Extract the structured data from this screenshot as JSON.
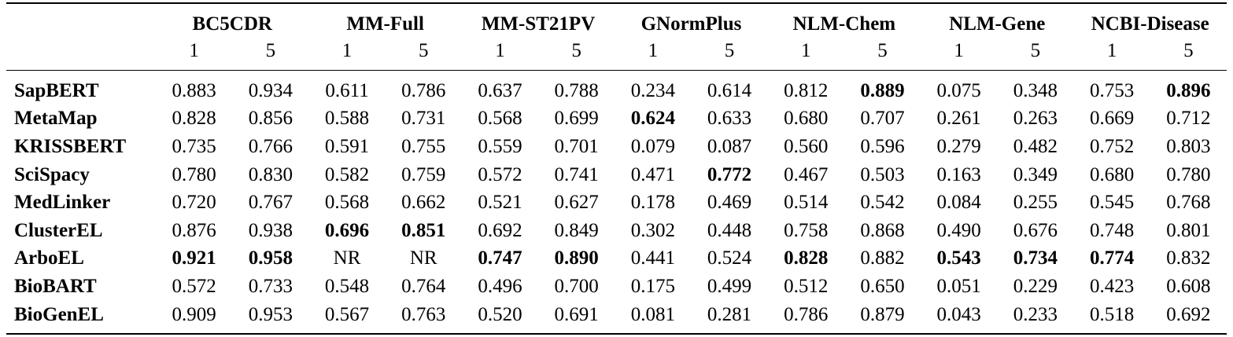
{
  "table": {
    "datasets": [
      "BC5CDR",
      "MM-Full",
      "MM-ST21PV",
      "GNormPlus",
      "NLM-Chem",
      "NLM-Gene",
      "NCBI-Disease"
    ],
    "k_labels": [
      "1",
      "5"
    ],
    "rows": [
      {
        "model": "SapBERT",
        "values": [
          "0.883",
          "0.934",
          "0.611",
          "0.786",
          "0.637",
          "0.788",
          "0.234",
          "0.614",
          "0.812",
          "0.889",
          "0.075",
          "0.348",
          "0.753",
          "0.896"
        ],
        "bold": [
          9,
          13
        ]
      },
      {
        "model": "MetaMap",
        "values": [
          "0.828",
          "0.856",
          "0.588",
          "0.731",
          "0.568",
          "0.699",
          "0.624",
          "0.633",
          "0.680",
          "0.707",
          "0.261",
          "0.263",
          "0.669",
          "0.712"
        ],
        "bold": [
          6
        ]
      },
      {
        "model": "KRISSBERT",
        "values": [
          "0.735",
          "0.766",
          "0.591",
          "0.755",
          "0.559",
          "0.701",
          "0.079",
          "0.087",
          "0.560",
          "0.596",
          "0.279",
          "0.482",
          "0.752",
          "0.803"
        ],
        "bold": []
      },
      {
        "model": "SciSpacy",
        "values": [
          "0.780",
          "0.830",
          "0.582",
          "0.759",
          "0.572",
          "0.741",
          "0.471",
          "0.772",
          "0.467",
          "0.503",
          "0.163",
          "0.349",
          "0.680",
          "0.780"
        ],
        "bold": [
          7
        ]
      },
      {
        "model": "MedLinker",
        "values": [
          "0.720",
          "0.767",
          "0.568",
          "0.662",
          "0.521",
          "0.627",
          "0.178",
          "0.469",
          "0.514",
          "0.542",
          "0.084",
          "0.255",
          "0.545",
          "0.768"
        ],
        "bold": []
      },
      {
        "model": "ClusterEL",
        "values": [
          "0.876",
          "0.938",
          "0.696",
          "0.851",
          "0.692",
          "0.849",
          "0.302",
          "0.448",
          "0.758",
          "0.868",
          "0.490",
          "0.676",
          "0.748",
          "0.801"
        ],
        "bold": [
          2,
          3
        ]
      },
      {
        "model": "ArboEL",
        "values": [
          "0.921",
          "0.958",
          "NR",
          "NR",
          "0.747",
          "0.890",
          "0.441",
          "0.524",
          "0.828",
          "0.882",
          "0.543",
          "0.734",
          "0.774",
          "0.832"
        ],
        "bold": [
          0,
          1,
          4,
          5,
          8,
          10,
          11,
          12
        ]
      },
      {
        "model": "BioBART",
        "values": [
          "0.572",
          "0.733",
          "0.548",
          "0.764",
          "0.496",
          "0.700",
          "0.175",
          "0.499",
          "0.512",
          "0.650",
          "0.051",
          "0.229",
          "0.423",
          "0.608"
        ],
        "bold": []
      },
      {
        "model": "BioGenEL",
        "values": [
          "0.909",
          "0.953",
          "0.567",
          "0.763",
          "0.520",
          "0.691",
          "0.081",
          "0.281",
          "0.786",
          "0.879",
          "0.043",
          "0.233",
          "0.518",
          "0.692"
        ],
        "bold": []
      }
    ]
  }
}
